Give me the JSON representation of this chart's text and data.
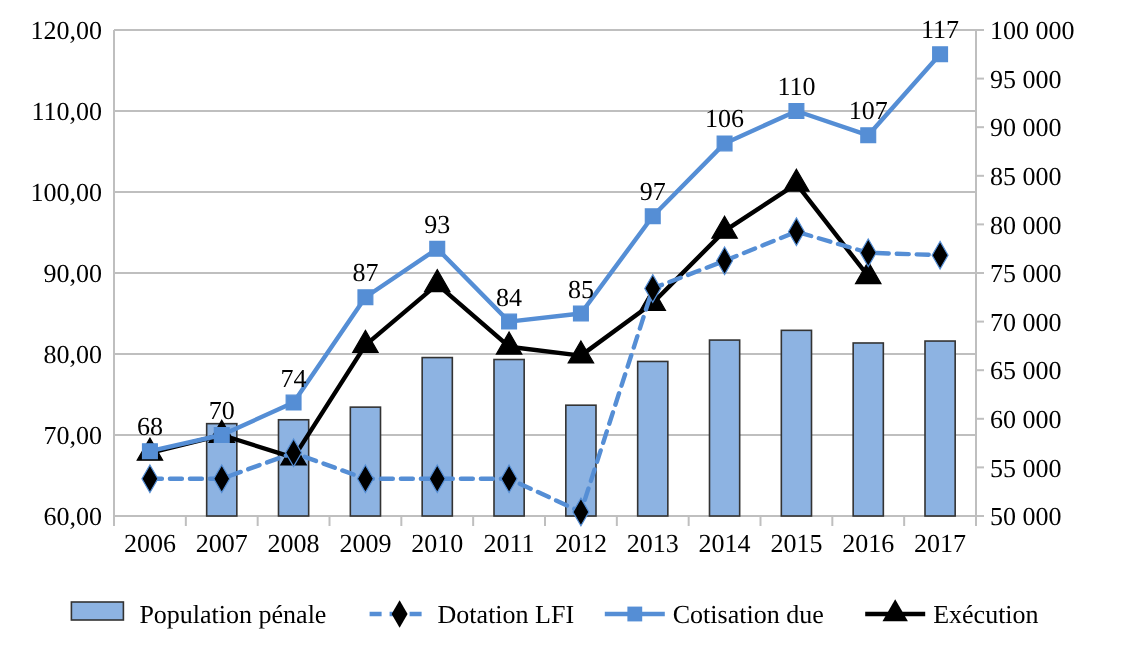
{
  "chart_data": {
    "type": "line",
    "categories": [
      "2006",
      "2007",
      "2008",
      "2009",
      "2010",
      "2011",
      "2012",
      "2013",
      "2014",
      "2015",
      "2016",
      "2017"
    ],
    "series": [
      {
        "name": "Population pénale",
        "type": "bar",
        "axis": "y2",
        "color": "#8db3e2",
        "values": [
          null,
          59500,
          59900,
          61200,
          66300,
          66100,
          61400,
          65900,
          68100,
          69100,
          67800,
          68000
        ]
      },
      {
        "name": "Dotation LFI",
        "color": "#558ed5",
        "marker": "diamond",
        "line_style": "dashed",
        "values": [
          64.6,
          64.6,
          67.8,
          64.6,
          64.6,
          64.6,
          60.5,
          88.1,
          91.5,
          95.1,
          92.5,
          92.2
        ]
      },
      {
        "name": "Cotisation due",
        "color": "#558ed5",
        "marker": "square",
        "line_style": "solid",
        "values": [
          68,
          70,
          74,
          87,
          93,
          84,
          85,
          97,
          106,
          110,
          107,
          117
        ],
        "value_labels": [
          "68",
          "70",
          "74",
          "87",
          "93",
          "84",
          "85",
          "97",
          "106",
          "110",
          "107",
          "117"
        ]
      },
      {
        "name": "Exécution",
        "color": "#000000",
        "marker": "triangle",
        "line_style": "solid",
        "values": [
          67.8,
          70.0,
          67.2,
          81.1,
          88.6,
          80.9,
          79.8,
          86.3,
          95.2,
          101.0,
          89.6,
          null
        ]
      }
    ],
    "ylim": [
      60,
      120
    ],
    "yticks": [
      {
        "value": 60,
        "label": "60,00"
      },
      {
        "value": 70,
        "label": "70,00"
      },
      {
        "value": 80,
        "label": "80,00"
      },
      {
        "value": 90,
        "label": "90,00"
      },
      {
        "value": 100,
        "label": "100,00"
      },
      {
        "value": 110,
        "label": "110,00"
      },
      {
        "value": 120,
        "label": "120,00"
      }
    ],
    "y2lim": [
      50000,
      100000
    ],
    "y2ticks": [
      {
        "value": 50000,
        "label": "50 000"
      },
      {
        "value": 55000,
        "label": "55 000"
      },
      {
        "value": 60000,
        "label": "60 000"
      },
      {
        "value": 65000,
        "label": "65 000"
      },
      {
        "value": 70000,
        "label": "70 000"
      },
      {
        "value": 75000,
        "label": "75 000"
      },
      {
        "value": 80000,
        "label": "80 000"
      },
      {
        "value": 85000,
        "label": "85 000"
      },
      {
        "value": 90000,
        "label": "90 000"
      },
      {
        "value": 95000,
        "label": "95 000"
      },
      {
        "value": 100000,
        "label": "100 000"
      }
    ],
    "grid": "y",
    "legend": "bottom"
  }
}
